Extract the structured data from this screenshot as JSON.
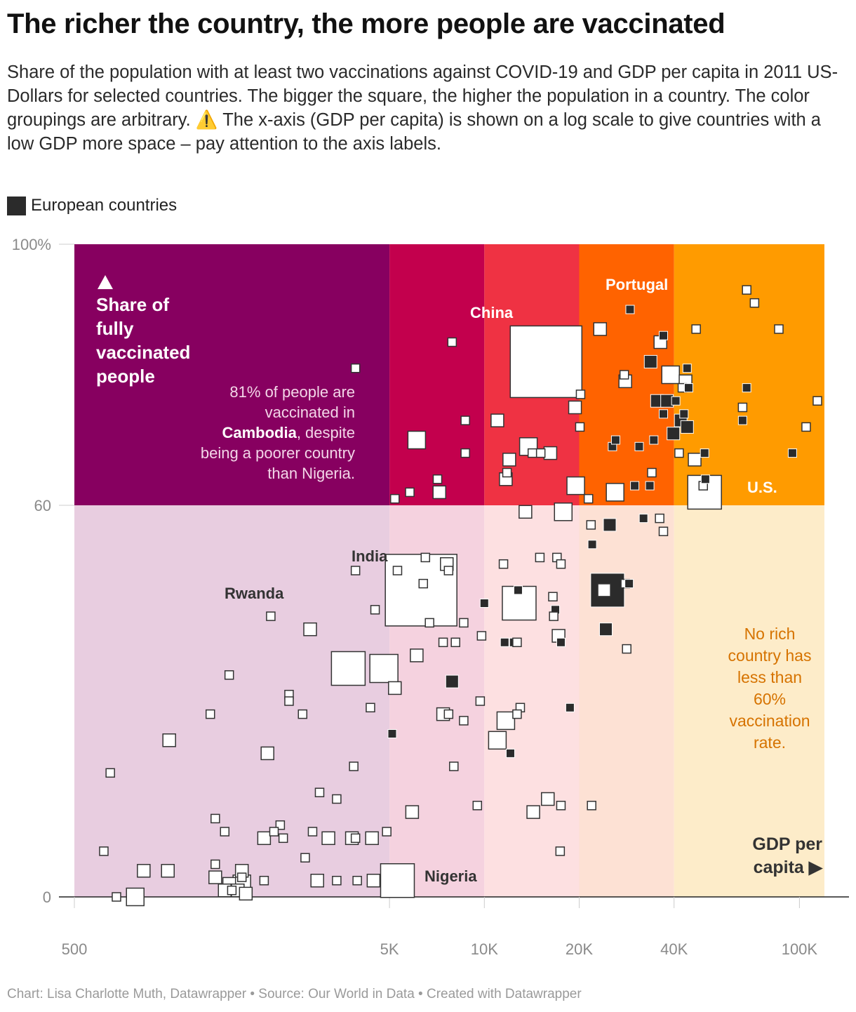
{
  "title": "The richer the country, the more people are vaccinated",
  "subtitle_parts": {
    "before_icon": "Share of the population with at least two vaccinations against COVID-19 and GDP per capita in 2011 US-Dollars for selected countries. The bigger the square, the higher the population in a country. The color groupings are arbitrary. ",
    "icon": "⚠️",
    "after_icon": " The x-axis (GDP per capita) is shown on a log scale to give countries with a low GDP more space – pay attention to the axis labels."
  },
  "legend": {
    "label": "European countries",
    "color": "#2b2b2b"
  },
  "footer": "Chart: Lisa Charlotte Muth, Datawrapper • Source: Our World in Data • Created with Datawrapper",
  "annotations": {
    "y_axis_title": [
      "Share of",
      "fully",
      "vaccinated",
      "people"
    ],
    "y_axis_arrow_icon": "up-triangle-icon",
    "cambodia_note": [
      "81% of people are",
      "vaccinated in",
      "Cambodia, despite",
      "being a poorer country",
      "than Nigeria."
    ],
    "cambodia_bold": "Cambodia",
    "rich_note": [
      "No rich",
      "country has",
      "less than",
      "60%",
      "vaccination",
      "rate."
    ],
    "x_axis_title": [
      "GDP per",
      "capita ▶"
    ],
    "labels": {
      "china": "China",
      "portugal": "Portugal",
      "us": "U.S.",
      "india": "India",
      "rwanda": "Rwanda",
      "nigeria": "Nigeria"
    }
  },
  "chart_data": {
    "type": "scatter",
    "x_scale": "log",
    "xlim": [
      500,
      120000
    ],
    "ylim": [
      0,
      100
    ],
    "x_ticks": [
      {
        "value": 500,
        "label": "500"
      },
      {
        "value": 5000,
        "label": "5K"
      },
      {
        "value": 10000,
        "label": "10K"
      },
      {
        "value": 20000,
        "label": "20K"
      },
      {
        "value": 40000,
        "label": "40K"
      },
      {
        "value": 100000,
        "label": "100K"
      }
    ],
    "y_ticks": [
      {
        "value": 0,
        "label": "0"
      },
      {
        "value": 60,
        "label": "60"
      },
      {
        "value": 100,
        "label": "100%"
      }
    ],
    "bands": [
      {
        "x0": 500,
        "x1": 5000,
        "top_color": "#870060",
        "bottom_color": "#e8cde0"
      },
      {
        "x0": 5000,
        "x1": 10000,
        "top_color": "#c3004d",
        "bottom_color": "#f5d2df"
      },
      {
        "x0": 10000,
        "x1": 20000,
        "top_color": "#ef3243",
        "bottom_color": "#fde0e1"
      },
      {
        "x0": 20000,
        "x1": 40000,
        "top_color": "#ff6300",
        "bottom_color": "#fde1d4"
      },
      {
        "x0": 40000,
        "x1": 120000,
        "top_color": "#ff9b00",
        "bottom_color": "#fdecc9"
      }
    ],
    "threshold_y": 60,
    "size_unit": "marker side scale 1-8 (relative population)",
    "points": [
      {
        "x": 7900,
        "y": 85,
        "s": 1,
        "eu": false
      },
      {
        "x": 3900,
        "y": 81,
        "s": 1,
        "eu": false
      },
      {
        "x": 15700,
        "y": 82,
        "s": 8,
        "eu": false,
        "label": "China"
      },
      {
        "x": 8700,
        "y": 73,
        "s": 1,
        "eu": false
      },
      {
        "x": 11000,
        "y": 73,
        "s": 2,
        "eu": false
      },
      {
        "x": 6100,
        "y": 70,
        "s": 3,
        "eu": false
      },
      {
        "x": 8700,
        "y": 68,
        "s": 1,
        "eu": false
      },
      {
        "x": 13800,
        "y": 69,
        "s": 3,
        "eu": false
      },
      {
        "x": 16200,
        "y": 68,
        "s": 2,
        "eu": false
      },
      {
        "x": 12000,
        "y": 67,
        "s": 2,
        "eu": false
      },
      {
        "x": 14200,
        "y": 68,
        "s": 1,
        "eu": false
      },
      {
        "x": 15100,
        "y": 68,
        "s": 1,
        "eu": false
      },
      {
        "x": 11800,
        "y": 65,
        "s": 1,
        "eu": false
      },
      {
        "x": 11700,
        "y": 64,
        "s": 2,
        "eu": false
      },
      {
        "x": 7100,
        "y": 64,
        "s": 1,
        "eu": false
      },
      {
        "x": 7200,
        "y": 62,
        "s": 2,
        "eu": false
      },
      {
        "x": 5800,
        "y": 62,
        "s": 1,
        "eu": false
      },
      {
        "x": 5200,
        "y": 61,
        "s": 1,
        "eu": false
      },
      {
        "x": 19400,
        "y": 75,
        "s": 2,
        "eu": false
      },
      {
        "x": 20200,
        "y": 77,
        "s": 1,
        "eu": false
      },
      {
        "x": 20100,
        "y": 72,
        "s": 1,
        "eu": false
      },
      {
        "x": 19500,
        "y": 63,
        "s": 3,
        "eu": false
      },
      {
        "x": 21400,
        "y": 61,
        "s": 1,
        "eu": false
      },
      {
        "x": 23300,
        "y": 87,
        "s": 2,
        "eu": false
      },
      {
        "x": 29000,
        "y": 90,
        "s": 1,
        "eu": true,
        "label": "Portugal"
      },
      {
        "x": 26000,
        "y": 62,
        "s": 3,
        "eu": false
      },
      {
        "x": 28000,
        "y": 79,
        "s": 2,
        "eu": false
      },
      {
        "x": 27800,
        "y": 80,
        "s": 1,
        "eu": false
      },
      {
        "x": 25500,
        "y": 69,
        "s": 1,
        "eu": true
      },
      {
        "x": 26100,
        "y": 70,
        "s": 1,
        "eu": true
      },
      {
        "x": 31000,
        "y": 69,
        "s": 1,
        "eu": true
      },
      {
        "x": 34500,
        "y": 70,
        "s": 1,
        "eu": true
      },
      {
        "x": 36200,
        "y": 85,
        "s": 2,
        "eu": false
      },
      {
        "x": 37000,
        "y": 86,
        "s": 1,
        "eu": true
      },
      {
        "x": 33700,
        "y": 82,
        "s": 2,
        "eu": true
      },
      {
        "x": 35300,
        "y": 76,
        "s": 2,
        "eu": true
      },
      {
        "x": 38000,
        "y": 76,
        "s": 2,
        "eu": true
      },
      {
        "x": 39000,
        "y": 80,
        "s": 3,
        "eu": false
      },
      {
        "x": 40500,
        "y": 76,
        "s": 1,
        "eu": true
      },
      {
        "x": 37000,
        "y": 74,
        "s": 1,
        "eu": true
      },
      {
        "x": 39800,
        "y": 71,
        "s": 2,
        "eu": true
      },
      {
        "x": 42000,
        "y": 73,
        "s": 2,
        "eu": true
      },
      {
        "x": 44000,
        "y": 72,
        "s": 2,
        "eu": true
      },
      {
        "x": 43000,
        "y": 74,
        "s": 1,
        "eu": true
      },
      {
        "x": 43500,
        "y": 79,
        "s": 2,
        "eu": false
      },
      {
        "x": 42500,
        "y": 78,
        "s": 1,
        "eu": false
      },
      {
        "x": 44500,
        "y": 78,
        "s": 1,
        "eu": true
      },
      {
        "x": 44000,
        "y": 81,
        "s": 1,
        "eu": true
      },
      {
        "x": 41500,
        "y": 68,
        "s": 1,
        "eu": false
      },
      {
        "x": 46500,
        "y": 67,
        "s": 2,
        "eu": false
      },
      {
        "x": 34000,
        "y": 65,
        "s": 1,
        "eu": false
      },
      {
        "x": 30000,
        "y": 63,
        "s": 1,
        "eu": true
      },
      {
        "x": 33500,
        "y": 63,
        "s": 1,
        "eu": true
      },
      {
        "x": 50000,
        "y": 62,
        "s": 4,
        "eu": false,
        "label": "U.S."
      },
      {
        "x": 49500,
        "y": 63,
        "s": 1,
        "eu": false
      },
      {
        "x": 50300,
        "y": 64,
        "s": 1,
        "eu": true
      },
      {
        "x": 50000,
        "y": 68,
        "s": 1,
        "eu": true
      },
      {
        "x": 47000,
        "y": 87,
        "s": 1,
        "eu": false
      },
      {
        "x": 68000,
        "y": 93,
        "s": 1,
        "eu": false
      },
      {
        "x": 72000,
        "y": 91,
        "s": 1,
        "eu": false
      },
      {
        "x": 86000,
        "y": 87,
        "s": 1,
        "eu": false
      },
      {
        "x": 68000,
        "y": 78,
        "s": 1,
        "eu": true
      },
      {
        "x": 66000,
        "y": 75,
        "s": 1,
        "eu": false
      },
      {
        "x": 66000,
        "y": 73,
        "s": 1,
        "eu": true
      },
      {
        "x": 95000,
        "y": 68,
        "s": 1,
        "eu": true
      },
      {
        "x": 105000,
        "y": 72,
        "s": 1,
        "eu": false
      },
      {
        "x": 114000,
        "y": 76,
        "s": 1,
        "eu": false
      },
      {
        "x": 13500,
        "y": 59,
        "s": 2,
        "eu": false
      },
      {
        "x": 17800,
        "y": 59,
        "s": 3,
        "eu": false
      },
      {
        "x": 21800,
        "y": 57,
        "s": 1,
        "eu": false
      },
      {
        "x": 25000,
        "y": 57,
        "s": 2,
        "eu": true
      },
      {
        "x": 22000,
        "y": 54,
        "s": 1,
        "eu": true
      },
      {
        "x": 32000,
        "y": 58,
        "s": 1,
        "eu": true
      },
      {
        "x": 36000,
        "y": 58,
        "s": 1,
        "eu": false
      },
      {
        "x": 37000,
        "y": 56,
        "s": 1,
        "eu": false
      },
      {
        "x": 6300,
        "y": 47,
        "s": 8,
        "eu": false,
        "label": "India"
      },
      {
        "x": 7600,
        "y": 51,
        "s": 2,
        "eu": false
      },
      {
        "x": 6500,
        "y": 52,
        "s": 1,
        "eu": false
      },
      {
        "x": 7700,
        "y": 50,
        "s": 1,
        "eu": false
      },
      {
        "x": 6400,
        "y": 48,
        "s": 1,
        "eu": false
      },
      {
        "x": 5300,
        "y": 50,
        "s": 1,
        "eu": false
      },
      {
        "x": 6700,
        "y": 42,
        "s": 1,
        "eu": false
      },
      {
        "x": 4500,
        "y": 44,
        "s": 1,
        "eu": false
      },
      {
        "x": 3900,
        "y": 50,
        "s": 1,
        "eu": false
      },
      {
        "x": 2100,
        "y": 43,
        "s": 1,
        "eu": false
      },
      {
        "x": 2800,
        "y": 41,
        "s": 2,
        "eu": false
      },
      {
        "x": 11500,
        "y": 51,
        "s": 1,
        "eu": false
      },
      {
        "x": 15000,
        "y": 52,
        "s": 1,
        "eu": false
      },
      {
        "x": 17000,
        "y": 52,
        "s": 1,
        "eu": false
      },
      {
        "x": 17500,
        "y": 51,
        "s": 1,
        "eu": false
      },
      {
        "x": 12900,
        "y": 45,
        "s": 4,
        "eu": false
      },
      {
        "x": 10000,
        "y": 45,
        "s": 1,
        "eu": true
      },
      {
        "x": 12800,
        "y": 47,
        "s": 1,
        "eu": true
      },
      {
        "x": 16500,
        "y": 46,
        "s": 1,
        "eu": false
      },
      {
        "x": 16800,
        "y": 44,
        "s": 1,
        "eu": true
      },
      {
        "x": 16600,
        "y": 43,
        "s": 1,
        "eu": false
      },
      {
        "x": 8600,
        "y": 42,
        "s": 1,
        "eu": false
      },
      {
        "x": 9800,
        "y": 40,
        "s": 1,
        "eu": false
      },
      {
        "x": 11600,
        "y": 39,
        "s": 1,
        "eu": true
      },
      {
        "x": 12400,
        "y": 39,
        "s": 1,
        "eu": true
      },
      {
        "x": 12700,
        "y": 39,
        "s": 1,
        "eu": false
      },
      {
        "x": 7400,
        "y": 39,
        "s": 1,
        "eu": false
      },
      {
        "x": 8100,
        "y": 39,
        "s": 1,
        "eu": false
      },
      {
        "x": 17200,
        "y": 40,
        "s": 2,
        "eu": false
      },
      {
        "x": 17500,
        "y": 39,
        "s": 1,
        "eu": true
      },
      {
        "x": 24000,
        "y": 47,
        "s": 2,
        "eu": false
      },
      {
        "x": 24600,
        "y": 47,
        "s": 4,
        "eu": true
      },
      {
        "x": 28000,
        "y": 48,
        "s": 1,
        "eu": false
      },
      {
        "x": 28800,
        "y": 48,
        "s": 1,
        "eu": true
      },
      {
        "x": 24300,
        "y": 41,
        "s": 2,
        "eu": true
      },
      {
        "x": 28300,
        "y": 38,
        "s": 1,
        "eu": false
      },
      {
        "x": 6100,
        "y": 37,
        "s": 2,
        "eu": false
      },
      {
        "x": 4800,
        "y": 35,
        "s": 5,
        "eu": false
      },
      {
        "x": 3700,
        "y": 35,
        "s": 4,
        "eu": false
      },
      {
        "x": 5200,
        "y": 32,
        "s": 2,
        "eu": false
      },
      {
        "x": 7900,
        "y": 33,
        "s": 2,
        "eu": true
      },
      {
        "x": 1550,
        "y": 34,
        "s": 1,
        "eu": false
      },
      {
        "x": 2400,
        "y": 31,
        "s": 1,
        "eu": false
      },
      {
        "x": 2400,
        "y": 30,
        "s": 1,
        "eu": false
      },
      {
        "x": 2650,
        "y": 28,
        "s": 1,
        "eu": false
      },
      {
        "x": 1350,
        "y": 28,
        "s": 1,
        "eu": false
      },
      {
        "x": 4350,
        "y": 29,
        "s": 1,
        "eu": false
      },
      {
        "x": 9700,
        "y": 30,
        "s": 1,
        "eu": false
      },
      {
        "x": 7400,
        "y": 28,
        "s": 2,
        "eu": false
      },
      {
        "x": 7700,
        "y": 28,
        "s": 1,
        "eu": false
      },
      {
        "x": 8600,
        "y": 27,
        "s": 1,
        "eu": false
      },
      {
        "x": 13000,
        "y": 29,
        "s": 1,
        "eu": false
      },
      {
        "x": 12700,
        "y": 28,
        "s": 1,
        "eu": false
      },
      {
        "x": 11700,
        "y": 27,
        "s": 3,
        "eu": false
      },
      {
        "x": 18700,
        "y": 29,
        "s": 1,
        "eu": true
      },
      {
        "x": 1000,
        "y": 24,
        "s": 2,
        "eu": false
      },
      {
        "x": 2050,
        "y": 22,
        "s": 2,
        "eu": false
      },
      {
        "x": 5100,
        "y": 25,
        "s": 1,
        "eu": true
      },
      {
        "x": 11000,
        "y": 24,
        "s": 3,
        "eu": false
      },
      {
        "x": 12100,
        "y": 22,
        "s": 1,
        "eu": true
      },
      {
        "x": 650,
        "y": 19,
        "s": 1,
        "eu": false
      },
      {
        "x": 3850,
        "y": 20,
        "s": 1,
        "eu": false
      },
      {
        "x": 8000,
        "y": 20,
        "s": 1,
        "eu": false
      },
      {
        "x": 3000,
        "y": 16,
        "s": 1,
        "eu": false
      },
      {
        "x": 3400,
        "y": 15,
        "s": 1,
        "eu": false
      },
      {
        "x": 1400,
        "y": 12,
        "s": 1,
        "eu": false
      },
      {
        "x": 2250,
        "y": 11,
        "s": 1,
        "eu": false
      },
      {
        "x": 9500,
        "y": 14,
        "s": 1,
        "eu": false
      },
      {
        "x": 14300,
        "y": 13,
        "s": 2,
        "eu": false
      },
      {
        "x": 15900,
        "y": 15,
        "s": 2,
        "eu": false
      },
      {
        "x": 17500,
        "y": 14,
        "s": 1,
        "eu": false
      },
      {
        "x": 21900,
        "y": 14,
        "s": 1,
        "eu": false
      },
      {
        "x": 5900,
        "y": 13,
        "s": 2,
        "eu": false
      },
      {
        "x": 1500,
        "y": 10,
        "s": 1,
        "eu": false
      },
      {
        "x": 2000,
        "y": 9,
        "s": 2,
        "eu": false
      },
      {
        "x": 2150,
        "y": 10,
        "s": 1,
        "eu": false
      },
      {
        "x": 2300,
        "y": 9,
        "s": 1,
        "eu": false
      },
      {
        "x": 2850,
        "y": 10,
        "s": 1,
        "eu": false
      },
      {
        "x": 3200,
        "y": 9,
        "s": 2,
        "eu": false
      },
      {
        "x": 3800,
        "y": 9,
        "s": 2,
        "eu": false
      },
      {
        "x": 3900,
        "y": 9,
        "s": 1,
        "eu": false
      },
      {
        "x": 4400,
        "y": 9,
        "s": 2,
        "eu": false
      },
      {
        "x": 4900,
        "y": 10,
        "s": 1,
        "eu": false
      },
      {
        "x": 17400,
        "y": 7,
        "s": 1,
        "eu": false
      },
      {
        "x": 620,
        "y": 7,
        "s": 1,
        "eu": false
      },
      {
        "x": 2700,
        "y": 6,
        "s": 1,
        "eu": false
      },
      {
        "x": 830,
        "y": 4,
        "s": 2,
        "eu": false
      },
      {
        "x": 990,
        "y": 4,
        "s": 2,
        "eu": false
      },
      {
        "x": 1400,
        "y": 5,
        "s": 1,
        "eu": false
      },
      {
        "x": 1700,
        "y": 4,
        "s": 2,
        "eu": false
      },
      {
        "x": 1400,
        "y": 3,
        "s": 2,
        "eu": false
      },
      {
        "x": 1700,
        "y": 3,
        "s": 1,
        "eu": false
      },
      {
        "x": 1700,
        "y": 2,
        "s": 3,
        "eu": false
      },
      {
        "x": 1550,
        "y": 2,
        "s": 2,
        "eu": false
      },
      {
        "x": 1500,
        "y": 1,
        "s": 2,
        "eu": false
      },
      {
        "x": 1580,
        "y": 1,
        "s": 1,
        "eu": false
      },
      {
        "x": 1650,
        "y": 1,
        "s": 2,
        "eu": false
      },
      {
        "x": 1750,
        "y": 0.5,
        "s": 2,
        "eu": false
      },
      {
        "x": 2000,
        "y": 2.5,
        "s": 1,
        "eu": false
      },
      {
        "x": 2950,
        "y": 2.5,
        "s": 2,
        "eu": false
      },
      {
        "x": 3400,
        "y": 2.5,
        "s": 1,
        "eu": false
      },
      {
        "x": 3950,
        "y": 2.5,
        "s": 1,
        "eu": false
      },
      {
        "x": 4450,
        "y": 2.5,
        "s": 2,
        "eu": false
      },
      {
        "x": 5300,
        "y": 2.5,
        "s": 4,
        "eu": false,
        "label": "Nigeria"
      },
      {
        "x": 680,
        "y": 0,
        "s": 1,
        "eu": false
      },
      {
        "x": 780,
        "y": 0,
        "s": 3,
        "eu": false
      }
    ]
  }
}
